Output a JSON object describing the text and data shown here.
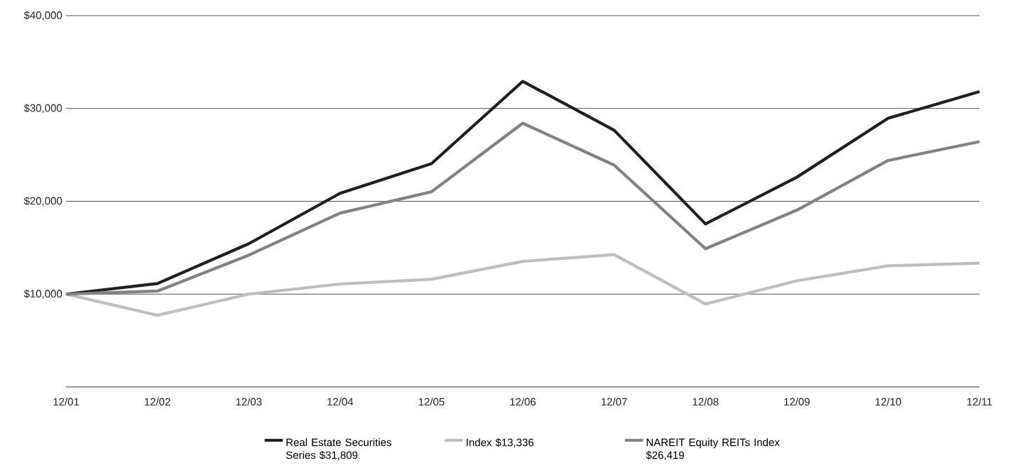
{
  "chart_data": {
    "type": "line",
    "categories": [
      "12/01",
      "12/02",
      "12/03",
      "12/04",
      "12/05",
      "12/06",
      "12/07",
      "12/08",
      "12/09",
      "12/10",
      "12/11"
    ],
    "series": [
      {
        "name": "Real Estate Securities Series $31,809",
        "color": "#231f20",
        "values": [
          10000,
          11140,
          15430,
          20860,
          24050,
          32920,
          27660,
          17560,
          22590,
          28940,
          31809
        ]
      },
      {
        "name": "Index $13,336",
        "color": "#bcbec0",
        "values": [
          10000,
          7720,
          10000,
          11090,
          11600,
          13530,
          14260,
          8940,
          11430,
          13050,
          13336
        ]
      },
      {
        "name": "NAREIT Equity REITs Index $26,419",
        "color": "#808285",
        "values": [
          10000,
          10330,
          14190,
          18730,
          21020,
          28410,
          23900,
          14890,
          19040,
          24400,
          26419
        ]
      }
    ],
    "ylim": [
      0,
      40000
    ],
    "yticks": [
      {
        "value": 10000,
        "label": "$10,000"
      },
      {
        "value": 20000,
        "label": "$20,000"
      },
      {
        "value": 30000,
        "label": "$30,000"
      },
      {
        "value": 40000,
        "label": "$40,000"
      }
    ],
    "grid": "y",
    "legend": "bottom"
  }
}
